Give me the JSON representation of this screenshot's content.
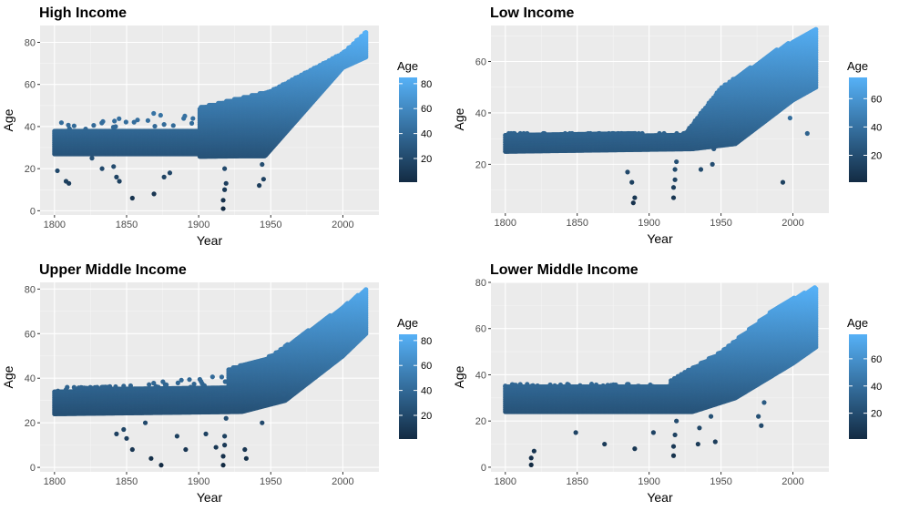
{
  "chart_data": [
    {
      "type": "scatter",
      "title": "High Income",
      "xlabel": "Year",
      "ylabel": "Age",
      "xlim": [
        1790,
        2025
      ],
      "ylim": [
        -2,
        88
      ],
      "x_ticks": [
        1800,
        1850,
        1900,
        1950,
        2000
      ],
      "y_ticks": [
        0,
        20,
        40,
        60,
        80
      ],
      "legend": {
        "title": "Age",
        "ticks": [
          20,
          40,
          60,
          80
        ],
        "min": 1,
        "max": 85,
        "position": "right"
      },
      "series": [
        {
          "band": "early",
          "x": [
            1800,
            1900
          ],
          "low": 27,
          "high": 38
        },
        {
          "band": "lower-edge",
          "x": [
            1800,
            1930,
            1946,
            2000,
            2016
          ],
          "y": [
            25,
            26,
            26,
            68,
            73
          ]
        },
        {
          "band": "upper-edge",
          "x": [
            1800,
            1900,
            1950,
            2000,
            2016
          ],
          "y": [
            42,
            49,
            57,
            75,
            85
          ]
        }
      ],
      "outliers": [
        {
          "x": 1802,
          "y": 19
        },
        {
          "x": 1808,
          "y": 14
        },
        {
          "x": 1810,
          "y": 13
        },
        {
          "x": 1826,
          "y": 25
        },
        {
          "x": 1833,
          "y": 20
        },
        {
          "x": 1841,
          "y": 21
        },
        {
          "x": 1843,
          "y": 16
        },
        {
          "x": 1845,
          "y": 14
        },
        {
          "x": 1854,
          "y": 6
        },
        {
          "x": 1869,
          "y": 8
        },
        {
          "x": 1876,
          "y": 16
        },
        {
          "x": 1880,
          "y": 18
        },
        {
          "x": 1917,
          "y": 1
        },
        {
          "x": 1917,
          "y": 5
        },
        {
          "x": 1918,
          "y": 10
        },
        {
          "x": 1918,
          "y": 20
        },
        {
          "x": 1919,
          "y": 13
        },
        {
          "x": 1942,
          "y": 12
        },
        {
          "x": 1945,
          "y": 15
        },
        {
          "x": 1944,
          "y": 22
        }
      ]
    },
    {
      "type": "scatter",
      "title": "Low Income",
      "xlabel": "Year",
      "ylabel": "Age",
      "xlim": [
        1790,
        2025
      ],
      "ylim": [
        1,
        74
      ],
      "x_ticks": [
        1800,
        1850,
        1900,
        1950,
        2000
      ],
      "y_ticks": [
        20,
        40,
        60
      ],
      "legend": {
        "title": "Age",
        "ticks": [
          20,
          40,
          60
        ],
        "min": 1,
        "max": 75,
        "position": "right"
      },
      "series": [
        {
          "band": "early",
          "x": [
            1800,
            1925
          ],
          "low": 25,
          "high": 32
        },
        {
          "band": "lower-edge",
          "x": [
            1800,
            1930,
            1960,
            2000,
            2016
          ],
          "y": [
            25,
            26,
            28,
            45,
            50
          ]
        },
        {
          "band": "upper-edge",
          "x": [
            1800,
            1925,
            1950,
            1990,
            2016
          ],
          "y": [
            32,
            32,
            50,
            65,
            73
          ]
        }
      ],
      "outliers": [
        {
          "x": 1885,
          "y": 17
        },
        {
          "x": 1889,
          "y": 5
        },
        {
          "x": 1890,
          "y": 7
        },
        {
          "x": 1888,
          "y": 13
        },
        {
          "x": 1917,
          "y": 7
        },
        {
          "x": 1917,
          "y": 11
        },
        {
          "x": 1918,
          "y": 14
        },
        {
          "x": 1918,
          "y": 18
        },
        {
          "x": 1919,
          "y": 21
        },
        {
          "x": 1936,
          "y": 18
        },
        {
          "x": 1944,
          "y": 20
        },
        {
          "x": 1945,
          "y": 26
        },
        {
          "x": 1993,
          "y": 13
        },
        {
          "x": 2010,
          "y": 32
        },
        {
          "x": 1998,
          "y": 38
        }
      ]
    },
    {
      "type": "scatter",
      "title": "Upper Middle Income",
      "xlabel": "Year",
      "ylabel": "Age",
      "xlim": [
        1790,
        2025
      ],
      "ylim": [
        -2,
        83
      ],
      "x_ticks": [
        1800,
        1850,
        1900,
        1950,
        2000
      ],
      "y_ticks": [
        0,
        20,
        40,
        60,
        80
      ],
      "legend": {
        "title": "Age",
        "ticks": [
          20,
          40,
          60,
          80
        ],
        "min": 1,
        "max": 85,
        "position": "right"
      },
      "series": [
        {
          "band": "early",
          "x": [
            1800,
            1920
          ],
          "low": 24,
          "high": 36
        },
        {
          "band": "lower-edge",
          "x": [
            1800,
            1930,
            1960,
            2000,
            2016
          ],
          "y": [
            24,
            25,
            30,
            50,
            60
          ]
        },
        {
          "band": "upper-edge",
          "x": [
            1800,
            1900,
            1950,
            2000,
            2016
          ],
          "y": [
            34,
            40,
            50,
            72,
            80
          ]
        }
      ],
      "outliers": [
        {
          "x": 1843,
          "y": 15
        },
        {
          "x": 1848,
          "y": 17
        },
        {
          "x": 1850,
          "y": 13
        },
        {
          "x": 1854,
          "y": 8
        },
        {
          "x": 1863,
          "y": 20
        },
        {
          "x": 1867,
          "y": 4
        },
        {
          "x": 1874,
          "y": 1
        },
        {
          "x": 1885,
          "y": 14
        },
        {
          "x": 1891,
          "y": 8
        },
        {
          "x": 1905,
          "y": 15
        },
        {
          "x": 1917,
          "y": 1
        },
        {
          "x": 1917,
          "y": 5
        },
        {
          "x": 1918,
          "y": 10
        },
        {
          "x": 1918,
          "y": 14
        },
        {
          "x": 1919,
          "y": 22
        },
        {
          "x": 1932,
          "y": 8
        },
        {
          "x": 1933,
          "y": 4
        },
        {
          "x": 1944,
          "y": 20
        },
        {
          "x": 1959,
          "y": 33
        },
        {
          "x": 1912,
          "y": 9
        }
      ]
    },
    {
      "type": "scatter",
      "title": "Lower Middle Income",
      "xlabel": "Year",
      "ylabel": "Age",
      "xlim": [
        1790,
        2025
      ],
      "ylim": [
        -2,
        80
      ],
      "x_ticks": [
        1800,
        1850,
        1900,
        1950,
        2000
      ],
      "y_ticks": [
        0,
        20,
        40,
        60,
        80
      ],
      "legend": {
        "title": "Age",
        "ticks": [
          20,
          40,
          60
        ],
        "min": 1,
        "max": 78,
        "position": "right"
      },
      "series": [
        {
          "band": "early",
          "x": [
            1800,
            1915
          ],
          "low": 24,
          "high": 35
        },
        {
          "band": "lower-edge",
          "x": [
            1800,
            1930,
            1960,
            2000,
            2016
          ],
          "y": [
            24,
            24,
            30,
            45,
            52
          ]
        },
        {
          "band": "upper-edge",
          "x": [
            1800,
            1910,
            1950,
            1990,
            2016
          ],
          "y": [
            36,
            36,
            50,
            70,
            78
          ]
        }
      ],
      "outliers": [
        {
          "x": 1818,
          "y": 4
        },
        {
          "x": 1820,
          "y": 7
        },
        {
          "x": 1818,
          "y": 1
        },
        {
          "x": 1849,
          "y": 15
        },
        {
          "x": 1869,
          "y": 10
        },
        {
          "x": 1890,
          "y": 8
        },
        {
          "x": 1903,
          "y": 15
        },
        {
          "x": 1917,
          "y": 5
        },
        {
          "x": 1917,
          "y": 9
        },
        {
          "x": 1918,
          "y": 14
        },
        {
          "x": 1919,
          "y": 20
        },
        {
          "x": 1934,
          "y": 10
        },
        {
          "x": 1946,
          "y": 11
        },
        {
          "x": 1976,
          "y": 22
        },
        {
          "x": 1978,
          "y": 18
        },
        {
          "x": 1980,
          "y": 28
        },
        {
          "x": 1935,
          "y": 17
        },
        {
          "x": 1943,
          "y": 22
        }
      ]
    }
  ]
}
